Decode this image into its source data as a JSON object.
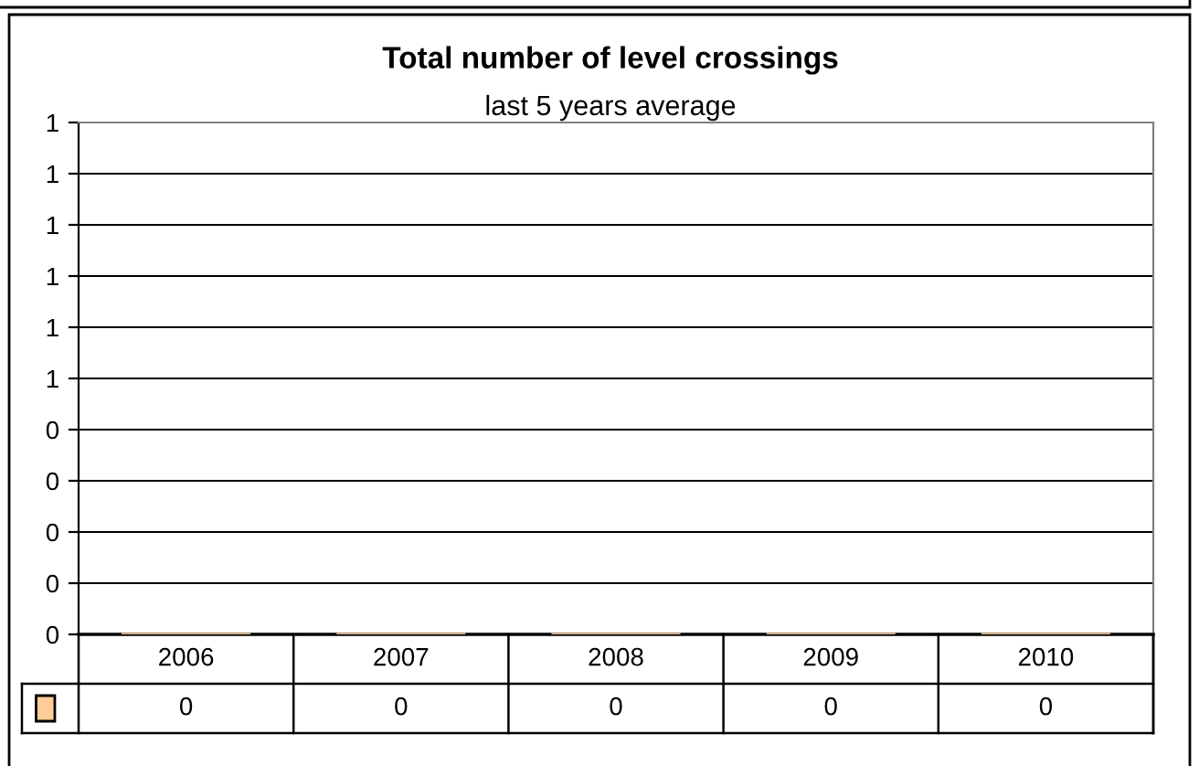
{
  "chart_data": {
    "type": "bar",
    "title": "Total number of level crossings",
    "subtitle": "last 5 years average",
    "categories": [
      "2006",
      "2007",
      "2008",
      "2009",
      "2010"
    ],
    "series": [
      {
        "color": "#ffcc99",
        "values": [
          0,
          0,
          0,
          0,
          0
        ]
      }
    ],
    "ylim": [
      0,
      1
    ],
    "yticks": [
      {
        "value": 0,
        "label": "0"
      },
      {
        "value": 0.1,
        "label": "0"
      },
      {
        "value": 0.2,
        "label": "0"
      },
      {
        "value": 0.3,
        "label": "0"
      },
      {
        "value": 0.4,
        "label": "0"
      },
      {
        "value": 0.5,
        "label": "1"
      },
      {
        "value": 0.6,
        "label": "1"
      },
      {
        "value": 0.7,
        "label": "1"
      },
      {
        "value": 0.8,
        "label": "1"
      },
      {
        "value": 0.9,
        "label": "1"
      },
      {
        "value": 1,
        "label": "1"
      }
    ],
    "grid": "y",
    "data_labels": true
  }
}
